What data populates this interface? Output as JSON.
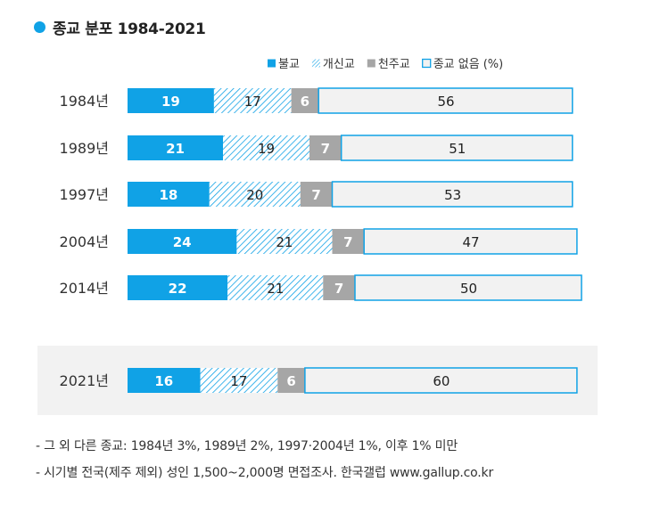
{
  "chart_data": {
    "type": "bar",
    "orientation": "horizontal",
    "stacked": true,
    "title": "종교 분포 1984-2021",
    "unit_label": "(%)",
    "categories": [
      "1984년",
      "1989년",
      "1997년",
      "2004년",
      "2014년",
      "2021년"
    ],
    "highlighted_category": "2021년",
    "legend_position": "top-right",
    "series": [
      {
        "name": "불교",
        "color": "#10a2e6",
        "values": [
          19,
          21,
          18,
          24,
          22,
          16
        ]
      },
      {
        "name": "개신교",
        "color": "#10a2e6",
        "pattern": "hatch",
        "values": [
          17,
          19,
          20,
          21,
          21,
          17
        ]
      },
      {
        "name": "천주교",
        "color": "#a6a6a6",
        "values": [
          6,
          7,
          7,
          7,
          7,
          6
        ]
      },
      {
        "name": "종교 없음",
        "color": "#f2f2f2",
        "border": "#10a2e6",
        "values": [
          56,
          51,
          53,
          47,
          50,
          60
        ]
      }
    ],
    "notes": [
      "- 그 외 다른 종교: 1984년 3%, 1989년 2%, 1997·2004년 1%, 이후 1% 미만",
      "- 시기별 전국(제주 제외) 성인 1,500~2,000명 면접조사. 한국갤럽 www.gallup.co.kr"
    ]
  }
}
